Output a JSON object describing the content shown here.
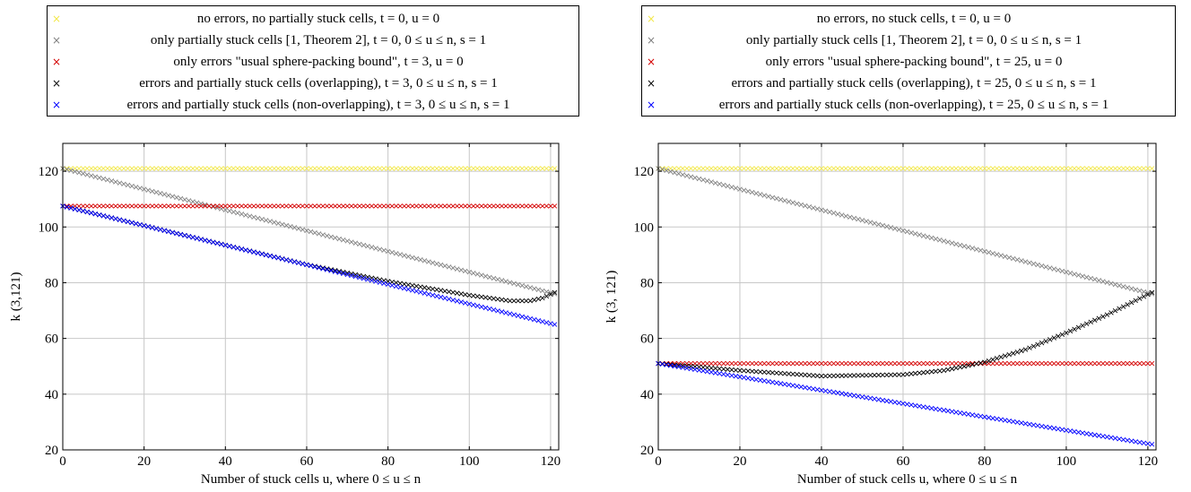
{
  "chart_data": [
    {
      "type": "scatter",
      "title": "",
      "xlabel": "Number of stuck cells u, where 0 ≤ u ≤ n",
      "ylabel": "k (3,121)",
      "xlim": [
        0,
        122
      ],
      "ylim": [
        20,
        130
      ],
      "xticks": [
        0,
        20,
        40,
        60,
        80,
        100,
        120
      ],
      "yticks": [
        20,
        40,
        60,
        80,
        100,
        120
      ],
      "grid": true,
      "legend_position": "above",
      "marker": "×",
      "series": [
        {
          "name": "no errors, no partially stuck cells, t = 0, u = 0",
          "color": "#f2e84c",
          "x": [
            0,
            121
          ],
          "y": [
            121,
            121
          ]
        },
        {
          "name": "only partially stuck cells [1, Theorem 2], t = 0, 0 ≤ u ≤ n, s = 1",
          "color": "#808080",
          "x": [
            0,
            121
          ],
          "y": [
            121,
            76
          ]
        },
        {
          "name": "only errors \"usual sphere-packing bound\", t = 3, u = 0",
          "color": "#d40000",
          "x": [
            0,
            121
          ],
          "y": [
            107.5,
            107.5
          ]
        },
        {
          "name": "errors and partially stuck cells (overlapping), t = 3, 0 ≤ u ≤ n, s = 1",
          "color": "#000000",
          "x": [
            0,
            20,
            40,
            60,
            80,
            100,
            110,
            115,
            118,
            121
          ],
          "y": [
            107.5,
            100.5,
            93.5,
            86.5,
            80.5,
            75.5,
            73.5,
            73.5,
            74.5,
            76.5
          ]
        },
        {
          "name": "errors and partially stuck cells (non-overlapping), t = 3, 0 ≤ u ≤ n, s = 1",
          "color": "#0000ff",
          "x": [
            0,
            121
          ],
          "y": [
            107.5,
            65
          ]
        }
      ]
    },
    {
      "type": "scatter",
      "title": "",
      "xlabel": "Number of stuck cells u, where 0 ≤ u ≤ n",
      "ylabel": "k (3, 121)",
      "xlim": [
        0,
        122
      ],
      "ylim": [
        20,
        130
      ],
      "xticks": [
        0,
        20,
        40,
        60,
        80,
        100,
        120
      ],
      "yticks": [
        20,
        40,
        60,
        80,
        100,
        120
      ],
      "grid": true,
      "legend_position": "above",
      "marker": "×",
      "series": [
        {
          "name": "no errors, no stuck cells, t = 0, u = 0",
          "color": "#f2e84c",
          "x": [
            0,
            121
          ],
          "y": [
            121,
            121
          ]
        },
        {
          "name": "only partially stuck cells [1, Theorem 2], t = 0, 0 ≤ u ≤ n, s = 1",
          "color": "#808080",
          "x": [
            0,
            121
          ],
          "y": [
            121,
            76
          ]
        },
        {
          "name": "only errors \"usual sphere-packing bound\", t = 25, u = 0",
          "color": "#d40000",
          "x": [
            0,
            121
          ],
          "y": [
            51,
            51
          ]
        },
        {
          "name": "errors and partially stuck cells (overlapping), t = 25, 0 ≤ u ≤ n, s = 1",
          "color": "#000000",
          "x": [
            0,
            20,
            40,
            60,
            70,
            80,
            90,
            100,
            110,
            121
          ],
          "y": [
            51,
            48.5,
            46.5,
            47,
            48.5,
            51.5,
            56,
            62,
            68.5,
            76.5
          ]
        },
        {
          "name": "errors and partially stuck cells (non-overlapping), t = 25, 0 ≤ u ≤ n, s = 1",
          "color": "#0000ff",
          "x": [
            0,
            121
          ],
          "y": [
            51,
            22
          ]
        }
      ]
    }
  ],
  "legends": {
    "left": [
      "no errors, no partially stuck cells, t = 0, u = 0",
      "only partially stuck cells [1, Theorem 2], t = 0, 0 ≤ u ≤ n, s = 1",
      "only errors \"usual sphere-packing bound\", t = 3, u = 0",
      "errors and partially stuck cells (overlapping), t = 3, 0 ≤ u ≤ n, s = 1",
      "errors and partially stuck cells (non-overlapping), t = 3, 0 ≤ u ≤ n, s = 1"
    ],
    "right": [
      "no errors, no stuck cells, t = 0, u = 0",
      "only partially stuck cells [1, Theorem 2], t = 0, 0 ≤ u ≤ n, s = 1",
      "only errors \"usual sphere-packing bound\", t = 25, u = 0",
      "errors and partially stuck cells (overlapping), t = 25, 0 ≤ u ≤ n, s = 1",
      "errors and partially stuck cells (non-overlapping), t = 25, 0 ≤ u ≤ n, s = 1"
    ],
    "marker_symbol": "×",
    "marker_colors": [
      "#f2e84c",
      "#808080",
      "#d40000",
      "#000000",
      "#0000ff"
    ]
  }
}
